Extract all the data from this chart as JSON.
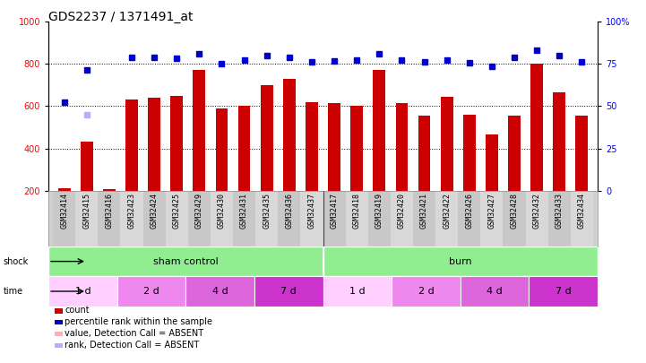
{
  "title": "GDS2237 / 1371491_at",
  "samples": [
    "GSM32414",
    "GSM32415",
    "GSM32416",
    "GSM32423",
    "GSM32424",
    "GSM32425",
    "GSM32429",
    "GSM32430",
    "GSM32431",
    "GSM32435",
    "GSM32436",
    "GSM32437",
    "GSM32417",
    "GSM32418",
    "GSM32419",
    "GSM32420",
    "GSM32421",
    "GSM32422",
    "GSM32426",
    "GSM32427",
    "GSM32428",
    "GSM32432",
    "GSM32433",
    "GSM32434"
  ],
  "red_bars": [
    210,
    430,
    205,
    630,
    640,
    650,
    770,
    590,
    600,
    700,
    730,
    620,
    615,
    600,
    770,
    615,
    555,
    645,
    560,
    465,
    555,
    800,
    665,
    555
  ],
  "blue_dots_left": [
    620,
    770,
    null,
    830,
    830,
    825,
    850,
    800,
    820,
    840,
    830,
    810,
    815,
    820,
    850,
    820,
    810,
    820,
    805,
    790,
    830,
    865,
    840,
    810
  ],
  "absent_rank_left": [
    null,
    560,
    null,
    null,
    null,
    null,
    null,
    null,
    null,
    null,
    null,
    null,
    null,
    null,
    null,
    null,
    null,
    null,
    null,
    null,
    null,
    null,
    null,
    null
  ],
  "ylim_left": [
    200,
    1000
  ],
  "ylim_right": [
    0,
    100
  ],
  "yticks_left": [
    200,
    400,
    600,
    800,
    1000
  ],
  "yticks_right": [
    0,
    25,
    50,
    75,
    100
  ],
  "bar_color": "#CC0000",
  "dot_color": "#0000CC",
  "absent_val_color": "#FFB0B0",
  "absent_rank_color": "#B0B0FF",
  "bg_color": "#FFFFFF",
  "title_fontsize": 10,
  "tick_fontsize": 7,
  "label_fontsize": 7,
  "shock_green": "#90EE90",
  "time_colors": [
    "#FFD0FF",
    "#EE88EE",
    "#DD66DD",
    "#CC33CC",
    "#FFD0FF",
    "#EE88EE",
    "#DD66DD",
    "#CC33CC"
  ],
  "time_labels": [
    "1 d",
    "2 d",
    "4 d",
    "7 d",
    "1 d",
    "2 d",
    "4 d",
    "7 d"
  ],
  "sham_label": "sham control",
  "burn_label": "burn"
}
